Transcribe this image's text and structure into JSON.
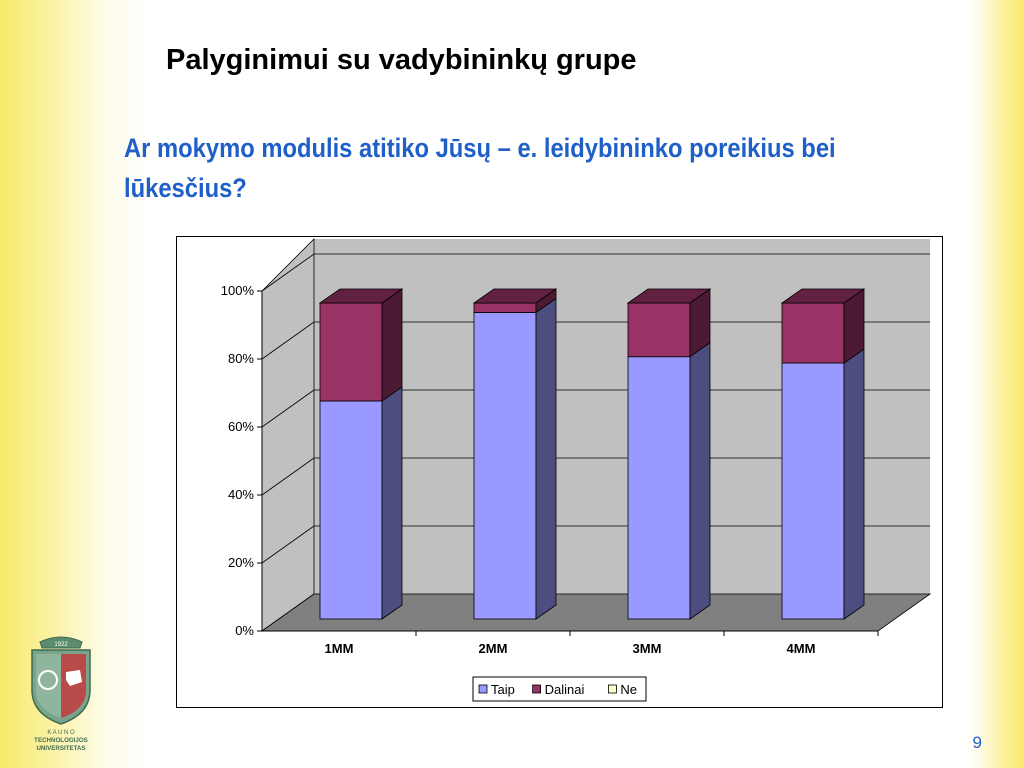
{
  "slide": {
    "title": "Palyginimui su vadybininkų grupe",
    "question": "Ar mokymo modulis atitiko Jūsų – e. leidybininko poreikius bei lūkesčius?",
    "page_number": "9"
  },
  "logo": {
    "year": "1922",
    "text_lines": [
      "K A U N O",
      "TECHNOLOGIJOS",
      "UNIVERSITETAS"
    ]
  },
  "colors": {
    "accent_text": "#1f5fc8",
    "taip": "#9999ff",
    "dalinai": "#993366",
    "ne": "#ffffcc",
    "plot_back_wall": "#c0c0c0",
    "floor": "#808080"
  },
  "chart_data": {
    "type": "bar",
    "stacked": "percent",
    "three_d": true,
    "categories": [
      "1MM",
      "2MM",
      "3MM",
      "4MM"
    ],
    "series": [
      {
        "name": "Taip",
        "values": [
          69,
          97,
          83,
          81
        ]
      },
      {
        "name": "Dalinai",
        "values": [
          31,
          3,
          17,
          19
        ]
      },
      {
        "name": "Ne",
        "values": [
          0,
          0,
          0,
          0
        ]
      }
    ],
    "ylim": [
      0,
      100
    ],
    "yticks": [
      "0%",
      "20%",
      "40%",
      "60%",
      "80%",
      "100%"
    ],
    "grid": true,
    "legend": "bottom"
  }
}
